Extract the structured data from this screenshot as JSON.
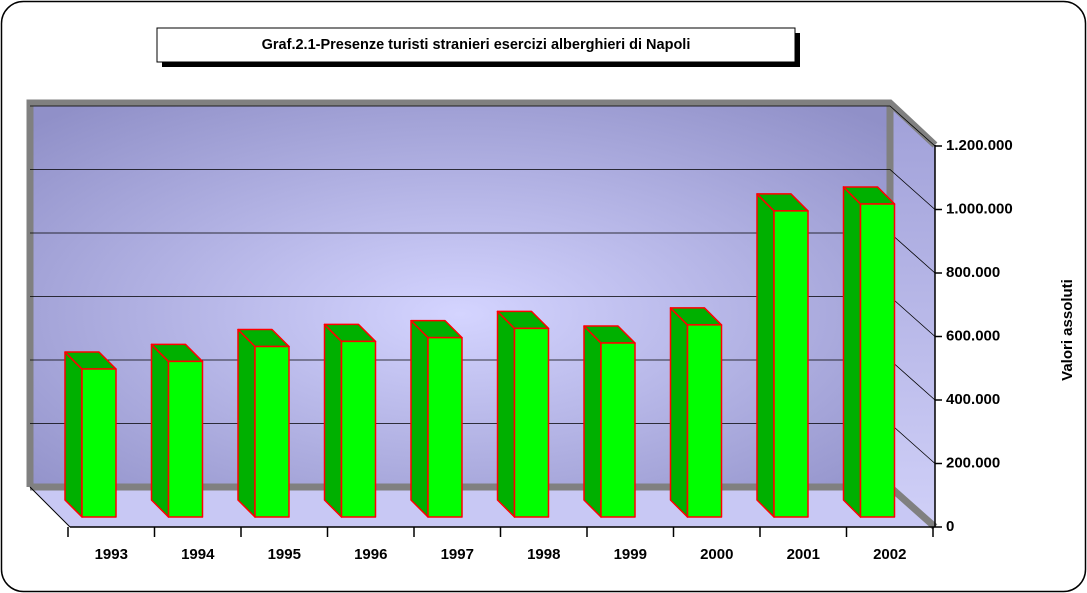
{
  "chart_data": {
    "type": "bar3d",
    "title": "Graf.2.1-Presenze turisti stranieri esercizi alberghieri di Napoli",
    "y_label": "Valori assoluti",
    "categories": [
      "1993",
      "1994",
      "1995",
      "1996",
      "1997",
      "1998",
      "1999",
      "2000",
      "2001",
      "2002"
    ],
    "values": [
      466000,
      490000,
      537000,
      553000,
      565000,
      594000,
      548000,
      605000,
      964000,
      986000
    ],
    "color": "#00ff00",
    "side_color": "#00b000",
    "edge_color": "#ff0000",
    "ylim": [
      0,
      1200000
    ],
    "yticks": [
      0,
      {
        "value": 200000,
        "label": "200.000"
      },
      {
        "value": 400000,
        "label": "400.000"
      },
      {
        "value": 600000,
        "label": "600.000"
      },
      {
        "value": 800000,
        "label": "800.000"
      },
      {
        "value": 1000000,
        "label": "1.000.000"
      },
      {
        "value": 1200000,
        "label": "1.200.000"
      }
    ],
    "grid": true
  }
}
